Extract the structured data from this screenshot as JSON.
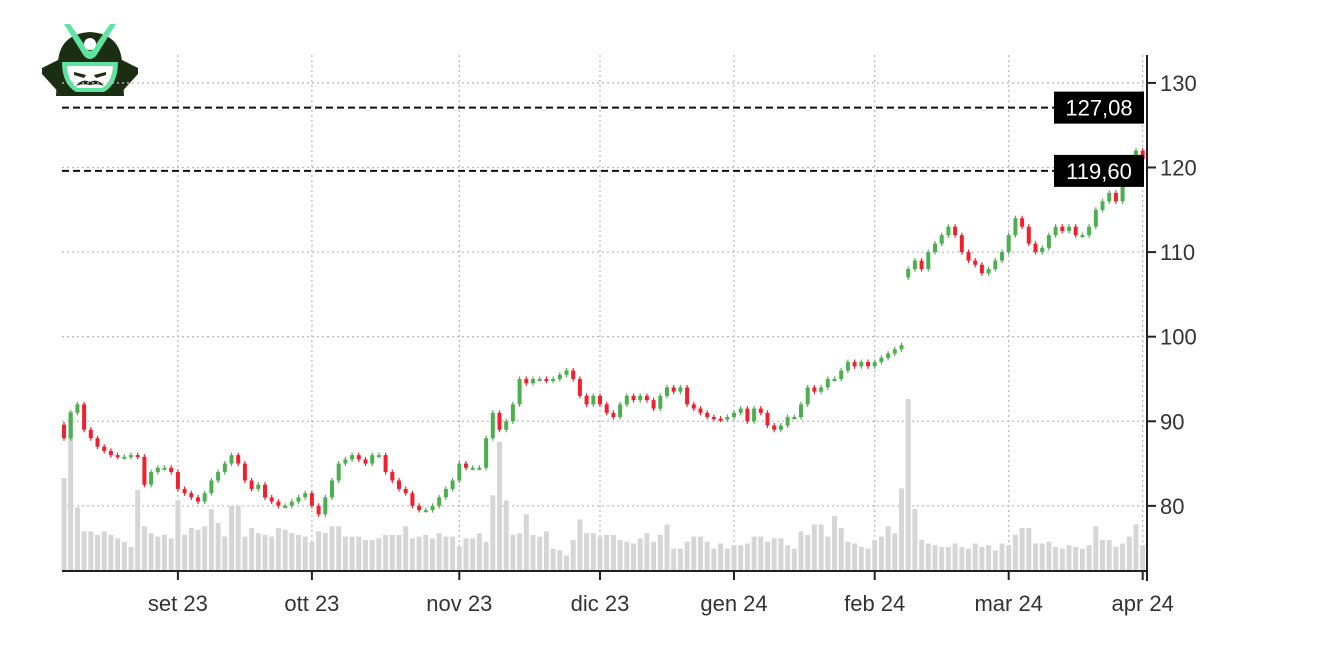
{
  "colors": {
    "up": "#4caf50",
    "down": "#f0212e",
    "volume": "#d6d6d6",
    "grid": "#bdbdbd",
    "axis": "#222222",
    "level_line": "#111111",
    "level_box": "#000000",
    "logo_green": "#5fe3a1",
    "logo_dark": "#1b2d12"
  },
  "logo": {
    "icon": "samurai-helmet-icon"
  },
  "chart_data": {
    "type": "candlestick",
    "title": "",
    "xlabel": "",
    "ylabel": "",
    "ylim": [
      72.3,
      133.3
    ],
    "grid": true,
    "y_axis_side": "right",
    "y_ticks": [
      80,
      90,
      100,
      110,
      120,
      130
    ],
    "y_tick_labels": [
      "80",
      "90",
      "100",
      "110",
      "120",
      "130"
    ],
    "x_ticks": [
      {
        "label": "set 23",
        "index": 17
      },
      {
        "label": "ott 23",
        "index": 37
      },
      {
        "label": "nov 23",
        "index": 59
      },
      {
        "label": "dic 23",
        "index": 80
      },
      {
        "label": "gen 24",
        "index": 100
      },
      {
        "label": "feb 24",
        "index": 121
      },
      {
        "label": "mar 24",
        "index": 141
      },
      {
        "label": "apr 24",
        "index": 161
      }
    ],
    "levels": [
      {
        "value": 127.08,
        "label": "127,08"
      },
      {
        "value": 119.6,
        "label": "119,60"
      }
    ],
    "open": [
      89.6,
      88,
      91,
      92,
      89,
      88,
      87,
      86.5,
      86,
      85.8,
      85.8,
      86,
      85.8,
      82.5,
      84,
      84.5,
      84.5,
      84,
      82,
      81.5,
      81,
      80.5,
      81.5,
      83,
      84,
      85,
      86,
      85,
      83,
      82,
      82.5,
      81,
      80.5,
      80,
      80,
      80.5,
      81,
      81.5,
      80,
      79,
      81,
      83,
      85,
      85.5,
      86,
      85.5,
      85,
      86,
      86,
      84,
      83,
      82,
      81.5,
      80,
      79.5,
      79.5,
      80,
      81,
      82,
      83,
      85,
      84.5,
      84.5,
      84.5,
      88,
      91,
      89,
      90,
      92,
      95,
      94.5,
      95,
      95,
      94.8,
      95,
      95.5,
      96,
      95,
      93,
      92,
      93,
      92,
      91,
      90.5,
      92,
      93,
      92.5,
      93,
      92.5,
      91.5,
      93,
      94,
      93.5,
      94,
      92,
      91.5,
      91,
      90.5,
      90.3,
      90.2,
      90.5,
      91,
      91.5,
      90,
      91.5,
      91,
      89.5,
      89,
      89.5,
      90.5,
      90.5,
      92,
      94,
      93.5,
      94,
      95,
      95,
      96,
      97,
      96.5,
      97,
      96.5,
      97,
      97.5,
      98,
      98.5,
      107,
      108,
      109,
      108,
      110,
      111,
      112,
      113,
      112,
      110,
      109,
      108.5,
      107.5,
      108,
      109,
      110,
      112,
      114,
      113,
      111,
      110,
      110.5,
      112,
      113,
      112.5,
      113,
      112,
      112,
      113,
      115,
      116,
      117,
      116,
      119,
      121,
      122
    ],
    "close": [
      88,
      91,
      92,
      89,
      88,
      87,
      86.5,
      86,
      85.8,
      85.8,
      86,
      85.8,
      82.5,
      84,
      84.5,
      84.5,
      84,
      82,
      81.5,
      81,
      80.5,
      81.5,
      83,
      84,
      85,
      86,
      85,
      83,
      82,
      82.5,
      81,
      80.5,
      80,
      80,
      80.5,
      81,
      81.5,
      80,
      79,
      81,
      83,
      85,
      85.5,
      86,
      85.5,
      85,
      86,
      86,
      84,
      83,
      82,
      81.5,
      80,
      79.5,
      79.5,
      80,
      81,
      82,
      83,
      85,
      84.5,
      84.5,
      84.5,
      88,
      91,
      89,
      90,
      92,
      95,
      94.5,
      95,
      95,
      94.8,
      95,
      95.5,
      96,
      95,
      93,
      92,
      93,
      92,
      91,
      90.5,
      92,
      93,
      92.5,
      93,
      92.5,
      91.5,
      93,
      94,
      93.5,
      94,
      92,
      91.5,
      91,
      90.5,
      90.3,
      90.2,
      90.5,
      91,
      91.5,
      90,
      91.5,
      91,
      89.5,
      89,
      89.5,
      90.5,
      90.5,
      92,
      94,
      93.5,
      94,
      95,
      95,
      96,
      97,
      96.5,
      97,
      96.5,
      97,
      97.5,
      98,
      98.5,
      99,
      108,
      109,
      108,
      110,
      111,
      112,
      113,
      112,
      110,
      109,
      108.5,
      107.5,
      108,
      109,
      110,
      112,
      114,
      113,
      111,
      110,
      110.5,
      112,
      113,
      112.5,
      113,
      112,
      112,
      113,
      115,
      116,
      117,
      116,
      119,
      121,
      122,
      121
    ],
    "volume": [
      54,
      93,
      37,
      23,
      23,
      21,
      23,
      21,
      19,
      17,
      14,
      47,
      26,
      22,
      20,
      21,
      19,
      41,
      21,
      25,
      24,
      26,
      36,
      28,
      20,
      38,
      38,
      20,
      25,
      22,
      21,
      20,
      25,
      24,
      22,
      21,
      20,
      17,
      23,
      22,
      26,
      26,
      20,
      20,
      20,
      18,
      18,
      19,
      21,
      21,
      21,
      26,
      19,
      20,
      21,
      19,
      22,
      20,
      20,
      14,
      19,
      19,
      22,
      17,
      44,
      75,
      41,
      21,
      22,
      33,
      21,
      20,
      23,
      13,
      12,
      9,
      18,
      30,
      22,
      22,
      20,
      21,
      21,
      18,
      17,
      16,
      19,
      22,
      17,
      21,
      27,
      13,
      13,
      17,
      20,
      20,
      17,
      13,
      16,
      13,
      15,
      15,
      16,
      20,
      20,
      17,
      19,
      19,
      15,
      13,
      23,
      21,
      27,
      27,
      20,
      32,
      25,
      17,
      16,
      14,
      13,
      18,
      20,
      26,
      22,
      48,
      100,
      36,
      18,
      16,
      15,
      14,
      14,
      16,
      14,
      13,
      16,
      14,
      15,
      12,
      16,
      15,
      21,
      25,
      25,
      16,
      16,
      17,
      14,
      13,
      15,
      14,
      13,
      15,
      26,
      18,
      18,
      14,
      16,
      20,
      27,
      15
    ]
  }
}
